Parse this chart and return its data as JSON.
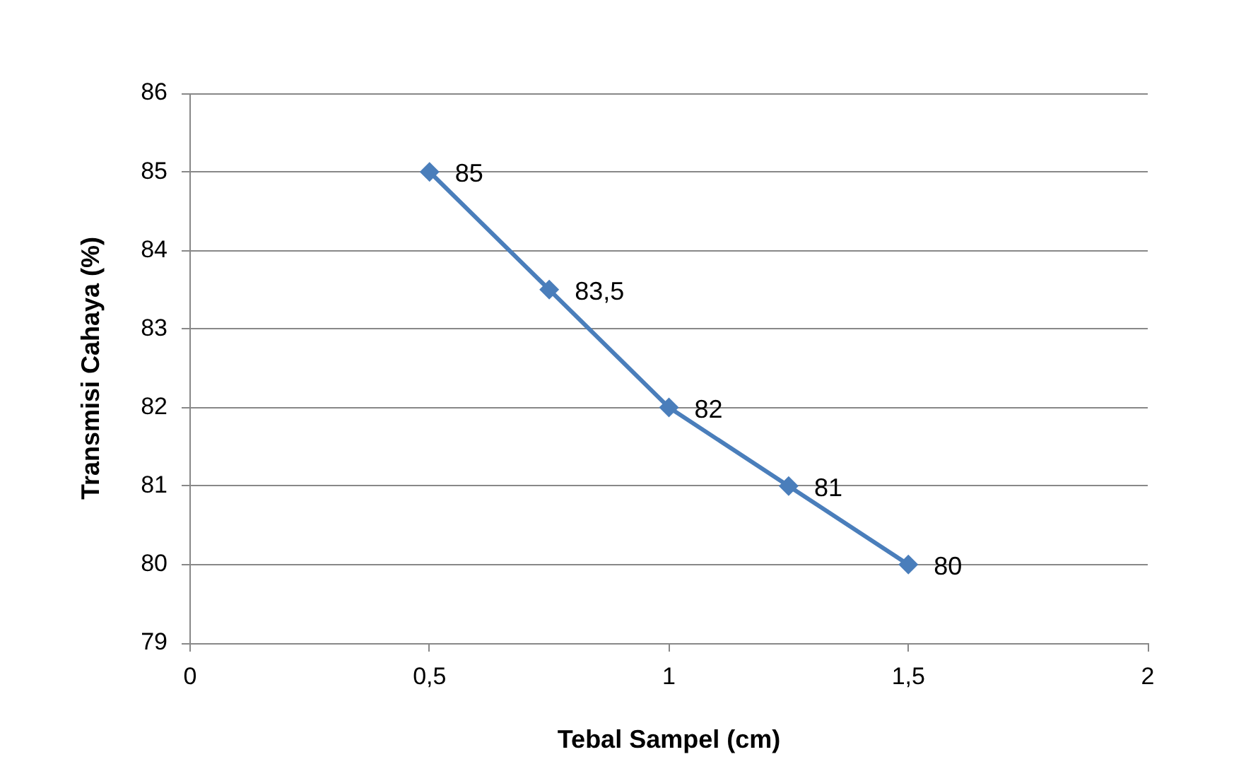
{
  "chart_data": {
    "type": "line",
    "xlabel": "Tebal Sampel (cm)",
    "ylabel": "Transmisi Cahaya (%)",
    "x": [
      0.5,
      0.75,
      1,
      1.25,
      1.5
    ],
    "series": [
      {
        "color": "#4a7ebb",
        "values": [
          85,
          83.5,
          82,
          81,
          80
        ],
        "value_labels": [
          "85",
          "83,5",
          "82",
          "81",
          "80"
        ]
      }
    ],
    "xlim": [
      0,
      2
    ],
    "xticks": [
      0,
      {
        "value": 0.5,
        "label": "0,5"
      },
      1,
      {
        "value": 1.5,
        "label": "1,5"
      },
      2
    ],
    "ylim": [
      79,
      86
    ],
    "yticks": [
      79,
      80,
      81,
      82,
      83,
      84,
      85,
      86
    ],
    "grid": "y",
    "legend": false,
    "marker": "diamond",
    "line_style": "solid"
  }
}
